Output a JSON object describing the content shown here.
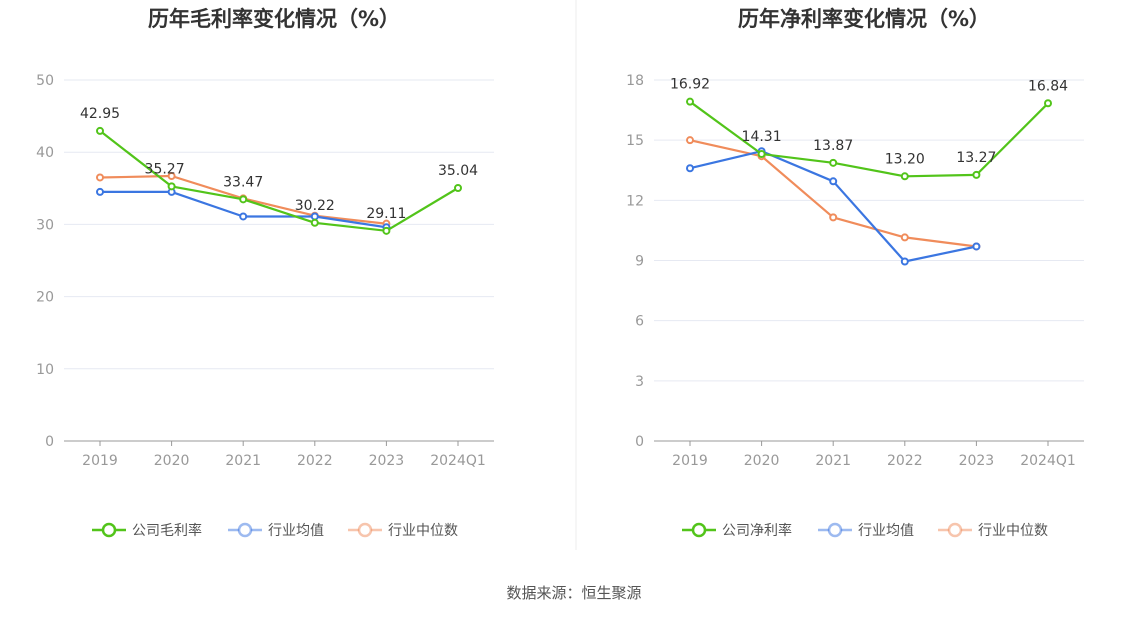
{
  "colors": {
    "company": "#52c41a",
    "industry_avg": "#3b76e1",
    "industry_median": "#f08c5b",
    "grid": "#e6e9f2",
    "axis": "#999999",
    "divider": "#eeeeee"
  },
  "source": "数据来源：恒生聚源",
  "chart_data": [
    {
      "type": "line",
      "title": "历年毛利率变化情况（%）",
      "categories": [
        "2019",
        "2020",
        "2021",
        "2022",
        "2023",
        "2024Q1"
      ],
      "ylim": [
        0,
        50
      ],
      "yticks": [
        0,
        10,
        20,
        30,
        40,
        50
      ],
      "grid": true,
      "legend_position": "bottom-center",
      "series": [
        {
          "name": "公司毛利率",
          "color_key": "company",
          "values": [
            42.95,
            35.27,
            33.47,
            30.22,
            29.11,
            35.04
          ],
          "labels": [
            "42.95",
            "35.27",
            "33.47",
            "30.22",
            "29.11",
            "35.04"
          ]
        },
        {
          "name": "行业均值",
          "color_key": "industry_avg",
          "values": [
            34.5,
            34.5,
            31.1,
            31.1,
            29.6,
            null
          ]
        },
        {
          "name": "行业中位数",
          "color_key": "industry_median",
          "values": [
            36.5,
            36.7,
            33.6,
            31.2,
            30.1,
            null
          ]
        }
      ]
    },
    {
      "type": "line",
      "title": "历年净利率变化情况（%）",
      "categories": [
        "2019",
        "2020",
        "2021",
        "2022",
        "2023",
        "2024Q1"
      ],
      "ylim": [
        0,
        18
      ],
      "yticks": [
        0,
        3,
        6,
        9,
        12,
        15,
        18
      ],
      "grid": true,
      "legend_position": "bottom-center",
      "series": [
        {
          "name": "公司净利率",
          "color_key": "company",
          "values": [
            16.92,
            14.31,
            13.87,
            13.2,
            13.27,
            16.84
          ],
          "labels": [
            "16.92",
            "14.31",
            "13.87",
            "13.20",
            "13.27",
            "16.84"
          ]
        },
        {
          "name": "行业均值",
          "color_key": "industry_avg",
          "values": [
            13.6,
            14.45,
            12.95,
            8.95,
            9.7,
            null
          ]
        },
        {
          "name": "行业中位数",
          "color_key": "industry_median",
          "values": [
            15.0,
            14.2,
            11.15,
            10.15,
            9.7,
            null
          ]
        }
      ]
    }
  ]
}
